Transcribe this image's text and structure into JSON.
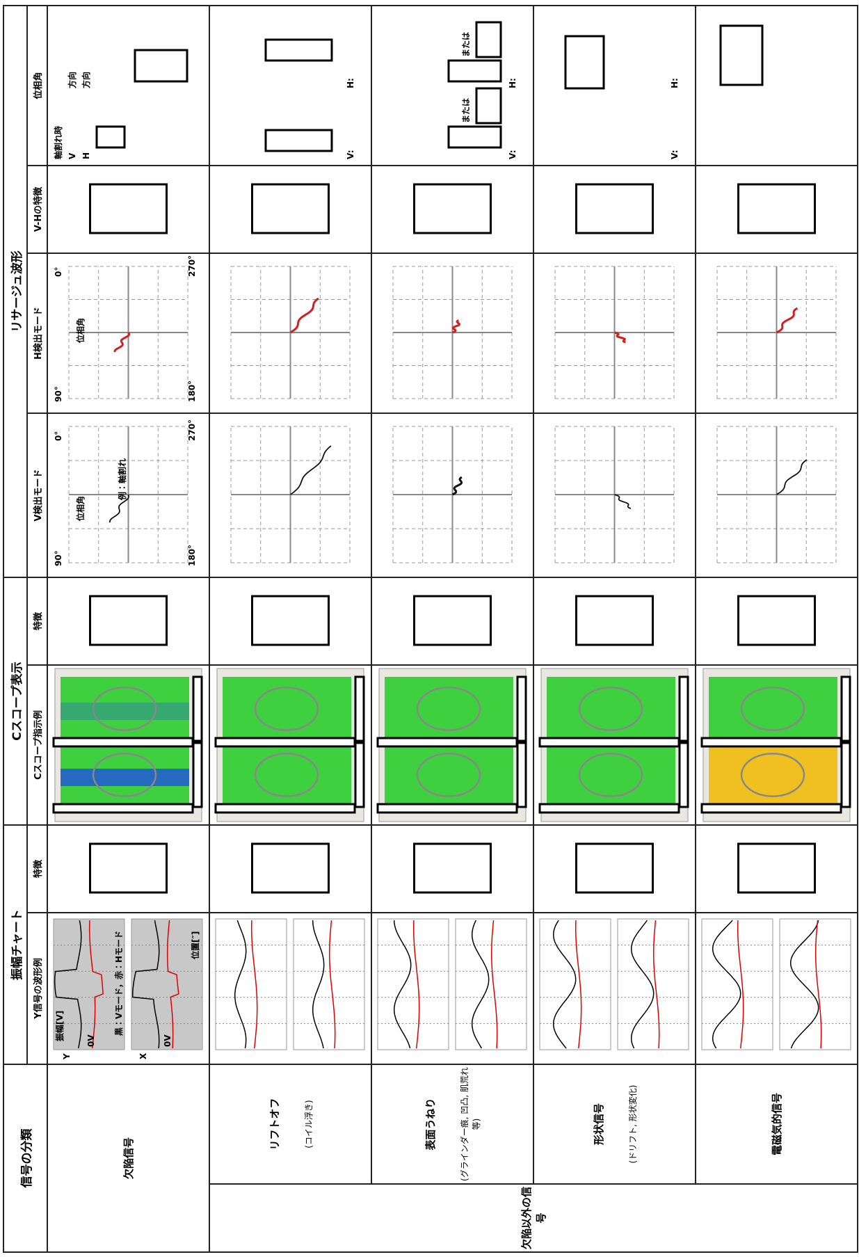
{
  "headers": {
    "classification": "信号の分類",
    "amplitude_chart": "振幅チャート",
    "c_scope": "Cスコープ表示",
    "lissajous": "リサージュ波形"
  },
  "subheaders": [
    "Y信号の波形例",
    "特徴",
    "Cスコープ指示例",
    "特徴",
    "V検出モード",
    "H検出モード",
    "V-Hの特徴",
    "位相角"
  ],
  "group": "欠陥以外の信号",
  "rows": [
    {
      "label": "欠陥信号",
      "amplitude": [
        "Y",
        "X",
        "振幅[V]",
        "0V",
        "0V",
        "黒：Vモード，赤：Hモード",
        "位置[″]"
      ],
      "v_mode": [
        "90°",
        "0°",
        "180°",
        "270°",
        "位相角",
        "例：軸割れ"
      ],
      "h_mode": [
        "90°",
        "0°",
        "180°",
        "270°",
        "位相角"
      ],
      "phase": [
        "軸割れ時",
        "V",
        "H",
        "方向",
        "方向"
      ]
    },
    {
      "label": "リフトオフ",
      "note": "(コイル浮き)",
      "phase": [
        "V:",
        "H:"
      ]
    },
    {
      "label": "表面うねり",
      "note": "(グラインダー痕, 凹凸, 肌荒れ等)",
      "phase": [
        "V:",
        "H:",
        "または",
        "または"
      ]
    },
    {
      "label": "形状信号",
      "note": "(ドリフト, 形状変化)",
      "phase": [
        "V:",
        "H:"
      ]
    },
    {
      "label": "電磁気的信号"
    }
  ]
}
